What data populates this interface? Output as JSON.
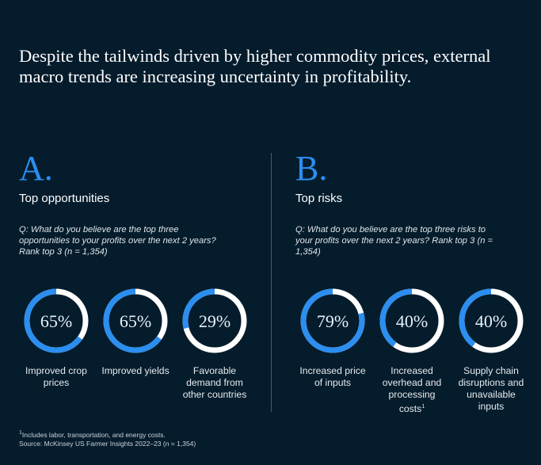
{
  "headline": "Despite the tailwinds driven by higher commodity prices, external macro trends are increasing uncertainty in profitability.",
  "colors": {
    "background": "#051c2c",
    "accent": "#2b8ef0",
    "track": "#ffffff"
  },
  "panels": [
    {
      "letter": "A.",
      "subhead": "Top opportunities",
      "question": "Q: What do you believe are the top three opportunities to your profits over the next 2 years? Rank top 3 (n = 1,354)"
    },
    {
      "letter": "B.",
      "subhead": "Top risks",
      "question": "Q: What do you believe are the top three risks to your profits over the next 2 years? Rank top 3 (n = 1,354)"
    }
  ],
  "chart_data": [
    {
      "type": "pie",
      "categories": [
        "Improved crop prices",
        "Improved yields",
        "Favorable demand from other countries"
      ],
      "values": [
        65,
        65,
        29
      ],
      "value_labels": [
        "65%",
        "65%",
        "29%"
      ]
    },
    {
      "type": "pie",
      "categories": [
        "Increased price of inputs",
        "Increased overhead and processing costs",
        "Supply chain disruptions and unavailable inputs"
      ],
      "category_footnotes": [
        "",
        "1",
        ""
      ],
      "values": [
        79,
        40,
        40
      ],
      "value_labels": [
        "79%",
        "40%",
        "40%"
      ]
    }
  ],
  "footnote": {
    "marker": "1",
    "text": "Includes labor, transportation, and energy costs.",
    "source": "Source: McKinsey US Farmer Insights 2022–23 (n = 1,354)"
  }
}
